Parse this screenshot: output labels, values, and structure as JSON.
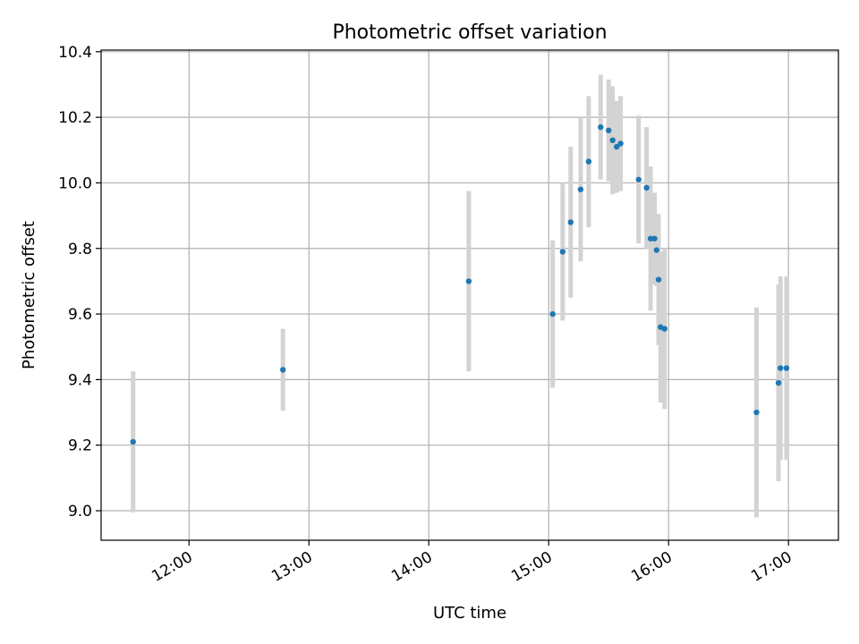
{
  "chart_data": {
    "type": "scatter",
    "title": "Photometric offset variation",
    "xlabel": "UTC time",
    "ylabel": "Photometric offset",
    "x_is_time": true,
    "xlim": [
      "11:16",
      "17:25"
    ],
    "ylim": [
      8.91,
      10.405
    ],
    "x_ticks": [
      "12:00",
      "13:00",
      "14:00",
      "15:00",
      "16:00",
      "17:00"
    ],
    "y_ticks": [
      9.0,
      9.2,
      9.4,
      9.6,
      9.8,
      10.0,
      10.2,
      10.4
    ],
    "y_tick_labels": [
      "9.0",
      "9.2",
      "9.4",
      "9.6",
      "9.8",
      "10.0",
      "10.2",
      "10.4"
    ],
    "grid": true,
    "point_color": "#1f77b4",
    "errorbar_color": "#d3d3d3",
    "points": [
      {
        "t": "11:32",
        "y": 9.21,
        "err": 0.215
      },
      {
        "t": "12:47",
        "y": 9.43,
        "err": 0.125
      },
      {
        "t": "14:20",
        "y": 9.7,
        "err": 0.275
      },
      {
        "t": "15:02",
        "y": 9.6,
        "err": 0.225
      },
      {
        "t": "15:07",
        "y": 9.79,
        "err": 0.21
      },
      {
        "t": "15:11",
        "y": 9.88,
        "err": 0.23
      },
      {
        "t": "15:16",
        "y": 9.98,
        "err": 0.22
      },
      {
        "t": "15:20",
        "y": 10.065,
        "err": 0.2
      },
      {
        "t": "15:26",
        "y": 10.17,
        "err": 0.16
      },
      {
        "t": "15:30",
        "y": 10.16,
        "err": 0.155
      },
      {
        "t": "15:32",
        "y": 10.13,
        "err": 0.165
      },
      {
        "t": "15:34",
        "y": 10.11,
        "err": 0.14
      },
      {
        "t": "15:36",
        "y": 10.12,
        "err": 0.145
      },
      {
        "t": "15:45",
        "y": 10.01,
        "err": 0.195
      },
      {
        "t": "15:49",
        "y": 9.985,
        "err": 0.185
      },
      {
        "t": "15:51",
        "y": 9.83,
        "err": 0.22
      },
      {
        "t": "15:53",
        "y": 9.83,
        "err": 0.14
      },
      {
        "t": "15:54",
        "y": 9.795,
        "err": 0.11
      },
      {
        "t": "15:55",
        "y": 9.705,
        "err": 0.2
      },
      {
        "t": "15:56",
        "y": 9.56,
        "err": 0.23
      },
      {
        "t": "15:58",
        "y": 9.555,
        "err": 0.245
      },
      {
        "t": "16:44",
        "y": 9.3,
        "err": 0.32
      },
      {
        "t": "16:55",
        "y": 9.39,
        "err": 0.3
      },
      {
        "t": "16:56",
        "y": 9.435,
        "err": 0.28
      },
      {
        "t": "16:59",
        "y": 9.435,
        "err": 0.28
      }
    ]
  }
}
